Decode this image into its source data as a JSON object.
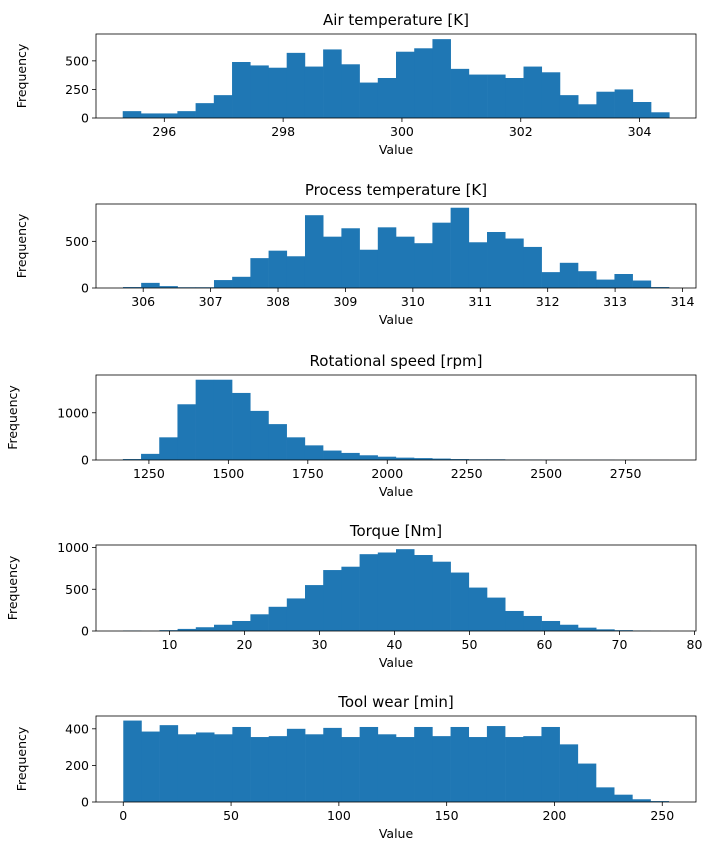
{
  "bar_color": "#1f77b4",
  "chart_data": [
    {
      "type": "bar",
      "title": "Air temperature [K]",
      "xlabel": "Value",
      "ylabel": "Frequency",
      "xlim": [
        294.85,
        304.95
      ],
      "ylim": [
        0,
        735
      ],
      "xticks": [
        {
          "value": 296,
          "label": "296"
        },
        {
          "value": 298,
          "label": "298"
        },
        {
          "value": 300,
          "label": "300"
        },
        {
          "value": 302,
          "label": "302"
        },
        {
          "value": 304,
          "label": "304"
        }
      ],
      "yticks": [
        {
          "value": 0,
          "label": "0"
        },
        {
          "value": 250,
          "label": "250"
        },
        {
          "value": 500,
          "label": "500"
        }
      ],
      "bin_start": 295.3,
      "bin_end": 304.5,
      "counts": [
        60,
        40,
        40,
        60,
        130,
        200,
        490,
        460,
        440,
        570,
        450,
        600,
        470,
        310,
        350,
        580,
        610,
        690,
        430,
        380,
        380,
        350,
        450,
        400,
        200,
        120,
        230,
        250,
        140,
        50
      ]
    },
    {
      "type": "bar",
      "title": "Process temperature [K]",
      "xlabel": "Value",
      "ylabel": "Frequency",
      "xlim": [
        305.3,
        314.2
      ],
      "ylim": [
        0,
        900
      ],
      "xticks": [
        {
          "value": 306,
          "label": "306"
        },
        {
          "value": 307,
          "label": "307"
        },
        {
          "value": 308,
          "label": "308"
        },
        {
          "value": 309,
          "label": "309"
        },
        {
          "value": 310,
          "label": "310"
        },
        {
          "value": 311,
          "label": "311"
        },
        {
          "value": 312,
          "label": "312"
        },
        {
          "value": 313,
          "label": "313"
        },
        {
          "value": 314,
          "label": "314"
        }
      ],
      "yticks": [
        {
          "value": 0,
          "label": "0"
        },
        {
          "value": 500,
          "label": "500"
        }
      ],
      "bin_start": 305.7,
      "bin_end": 313.8,
      "counts": [
        10,
        55,
        20,
        8,
        8,
        85,
        120,
        320,
        400,
        340,
        780,
        550,
        640,
        410,
        650,
        550,
        480,
        700,
        860,
        490,
        600,
        530,
        440,
        170,
        270,
        180,
        90,
        150,
        80,
        10
      ]
    },
    {
      "type": "bar",
      "title": "Rotational speed [rpm]",
      "xlabel": "Value",
      "ylabel": "Frequency",
      "xlim": [
        1083.5,
        2971.5
      ],
      "ylim": [
        0,
        1800
      ],
      "xticks": [
        {
          "value": 1250,
          "label": "1250"
        },
        {
          "value": 1500,
          "label": "1500"
        },
        {
          "value": 1750,
          "label": "1750"
        },
        {
          "value": 2000,
          "label": "2000"
        },
        {
          "value": 2250,
          "label": "2250"
        },
        {
          "value": 2500,
          "label": "2500"
        },
        {
          "value": 2750,
          "label": "2750"
        }
      ],
      "yticks": [
        {
          "value": 0,
          "label": "0"
        },
        {
          "value": 1000,
          "label": "1000"
        }
      ],
      "bin_start": 1168,
      "bin_end": 2886,
      "counts": [
        20,
        130,
        480,
        1180,
        1700,
        1700,
        1420,
        1040,
        760,
        480,
        310,
        200,
        150,
        100,
        70,
        50,
        40,
        30,
        20,
        15,
        15,
        10,
        10,
        8,
        6,
        5,
        5,
        3,
        3,
        2
      ]
    },
    {
      "type": "bar",
      "title": "Torque [Nm]",
      "xlabel": "Value",
      "ylabel": "Frequency",
      "xlim": [
        0.2,
        80.2
      ],
      "ylim": [
        0,
        1030
      ],
      "xticks": [
        {
          "value": 10,
          "label": "10"
        },
        {
          "value": 20,
          "label": "20"
        },
        {
          "value": 30,
          "label": "30"
        },
        {
          "value": 40,
          "label": "40"
        },
        {
          "value": 50,
          "label": "50"
        },
        {
          "value": 60,
          "label": "60"
        },
        {
          "value": 70,
          "label": "70"
        },
        {
          "value": 80,
          "label": "80"
        }
      ],
      "yticks": [
        {
          "value": 0,
          "label": "0"
        },
        {
          "value": 500,
          "label": "500"
        },
        {
          "value": 1000,
          "label": "1000"
        }
      ],
      "bin_start": 3.8,
      "bin_end": 76.6,
      "counts": [
        5,
        2,
        10,
        25,
        45,
        75,
        120,
        200,
        290,
        390,
        550,
        730,
        770,
        920,
        940,
        980,
        910,
        830,
        700,
        520,
        400,
        240,
        180,
        120,
        75,
        40,
        20,
        10,
        5,
        2
      ]
    },
    {
      "type": "bar",
      "title": "Tool wear [min]",
      "xlabel": "Value",
      "ylabel": "Frequency",
      "xlim": [
        -12.65,
        265.65
      ],
      "ylim": [
        0,
        470
      ],
      "xticks": [
        {
          "value": 0,
          "label": "0"
        },
        {
          "value": 50,
          "label": "50"
        },
        {
          "value": 100,
          "label": "100"
        },
        {
          "value": 150,
          "label": "150"
        },
        {
          "value": 200,
          "label": "200"
        },
        {
          "value": 250,
          "label": "250"
        }
      ],
      "yticks": [
        {
          "value": 0,
          "label": "0"
        },
        {
          "value": 200,
          "label": "200"
        },
        {
          "value": 400,
          "label": "400"
        }
      ],
      "bin_start": 0,
      "bin_end": 253,
      "counts": [
        445,
        385,
        420,
        370,
        380,
        370,
        410,
        355,
        360,
        400,
        370,
        405,
        355,
        410,
        370,
        355,
        410,
        360,
        410,
        355,
        415,
        355,
        360,
        410,
        315,
        210,
        80,
        40,
        15,
        5
      ]
    }
  ]
}
